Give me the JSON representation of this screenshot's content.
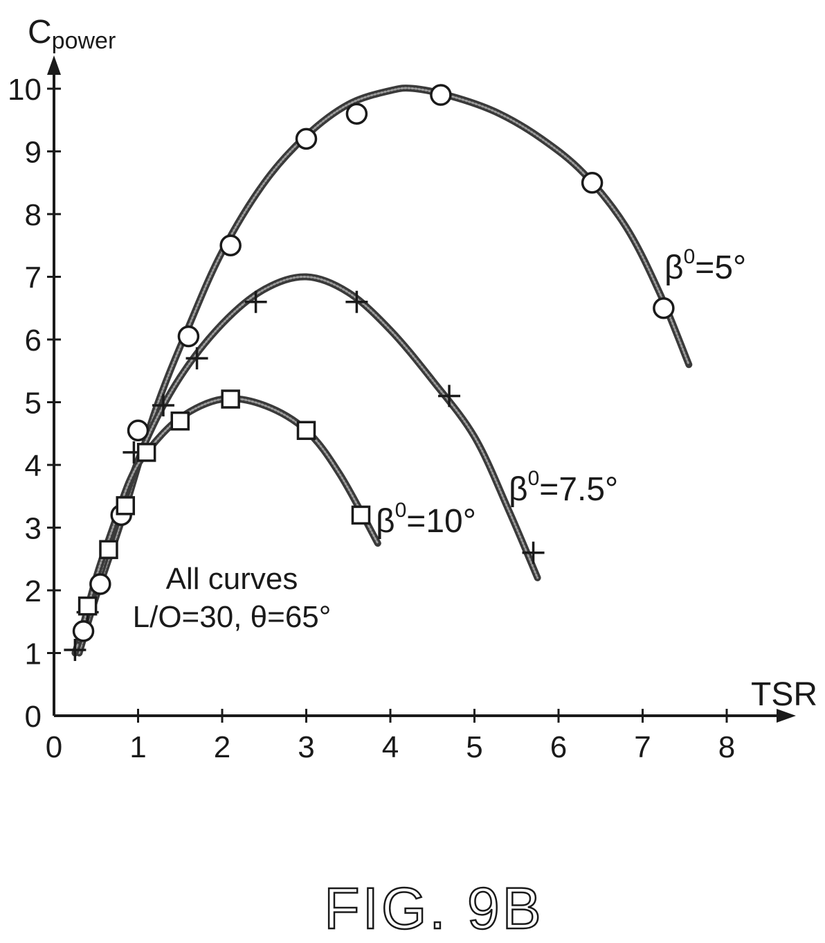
{
  "chart_data": {
    "type": "line",
    "xlabel": "TSR",
    "ylabel_main": "C",
    "ylabel_sub": "power",
    "xlim": [
      0,
      8.5
    ],
    "ylim": [
      0,
      10.5
    ],
    "x_ticks": [
      0,
      1,
      2,
      3,
      4,
      5,
      6,
      7,
      8
    ],
    "x_tick_labels": [
      "0",
      "1",
      "2",
      "3",
      "4",
      "5",
      "6",
      "7",
      "8"
    ],
    "y_ticks": [
      0,
      1,
      2,
      3,
      4,
      5,
      6,
      7,
      8,
      9,
      10
    ],
    "y_tick_labels": [
      "0",
      "1",
      "2",
      "3",
      "4",
      "5",
      "6",
      "7",
      "8",
      "9",
      "10"
    ],
    "series": [
      {
        "name_base": "β",
        "name_sup": "0",
        "name_rest": "=5°",
        "marker": "circle",
        "points": [
          [
            0.35,
            1.35
          ],
          [
            0.55,
            2.1
          ],
          [
            0.8,
            3.2
          ],
          [
            1.0,
            4.55
          ],
          [
            1.6,
            6.05
          ],
          [
            2.1,
            7.5
          ],
          [
            3.0,
            9.2
          ],
          [
            3.6,
            9.6
          ],
          [
            4.6,
            9.9
          ],
          [
            6.4,
            8.5
          ],
          [
            7.25,
            6.5
          ]
        ],
        "curve": [
          [
            0.3,
            1.0
          ],
          [
            0.5,
            1.9
          ],
          [
            0.8,
            3.1
          ],
          [
            1.2,
            4.85
          ],
          [
            1.6,
            6.2
          ],
          [
            2.0,
            7.4
          ],
          [
            2.5,
            8.5
          ],
          [
            3.0,
            9.25
          ],
          [
            3.5,
            9.75
          ],
          [
            4.0,
            9.97
          ],
          [
            4.3,
            10.0
          ],
          [
            4.8,
            9.85
          ],
          [
            5.3,
            9.6
          ],
          [
            5.8,
            9.2
          ],
          [
            6.3,
            8.65
          ],
          [
            6.8,
            7.8
          ],
          [
            7.2,
            6.75
          ],
          [
            7.55,
            5.6
          ]
        ]
      },
      {
        "name_base": "β",
        "name_sup": "0",
        "name_rest": "=7.5°",
        "marker": "plus",
        "points": [
          [
            0.25,
            1.05
          ],
          [
            0.4,
            1.65
          ],
          [
            0.95,
            4.2
          ],
          [
            1.3,
            4.95
          ],
          [
            1.7,
            5.7
          ],
          [
            2.4,
            6.6
          ],
          [
            3.6,
            6.6
          ],
          [
            4.7,
            5.1
          ],
          [
            5.7,
            2.6
          ]
        ],
        "curve": [
          [
            0.25,
            1.0
          ],
          [
            0.5,
            2.05
          ],
          [
            0.8,
            3.3
          ],
          [
            1.1,
            4.4
          ],
          [
            1.5,
            5.4
          ],
          [
            2.0,
            6.25
          ],
          [
            2.5,
            6.8
          ],
          [
            3.0,
            7.0
          ],
          [
            3.5,
            6.75
          ],
          [
            4.0,
            6.15
          ],
          [
            4.5,
            5.35
          ],
          [
            5.0,
            4.45
          ],
          [
            5.4,
            3.3
          ],
          [
            5.75,
            2.2
          ]
        ]
      },
      {
        "name_base": "β",
        "name_sup": "0",
        "name_rest": "=10°",
        "marker": "square",
        "points": [
          [
            0.4,
            1.75
          ],
          [
            0.65,
            2.65
          ],
          [
            0.85,
            3.35
          ],
          [
            1.1,
            4.2
          ],
          [
            1.5,
            4.7
          ],
          [
            2.1,
            5.05
          ],
          [
            3.0,
            4.55
          ],
          [
            3.65,
            3.2
          ]
        ],
        "curve": [
          [
            0.3,
            1.2
          ],
          [
            0.5,
            2.2
          ],
          [
            0.7,
            3.0
          ],
          [
            0.9,
            3.75
          ],
          [
            1.1,
            4.2
          ],
          [
            1.5,
            4.75
          ],
          [
            2.0,
            5.05
          ],
          [
            2.5,
            4.95
          ],
          [
            3.0,
            4.55
          ],
          [
            3.4,
            3.85
          ],
          [
            3.85,
            2.75
          ]
        ]
      }
    ],
    "annotations": [
      "All curves",
      "L/O=30, θ=65°"
    ]
  },
  "caption": "FIG. 9B"
}
